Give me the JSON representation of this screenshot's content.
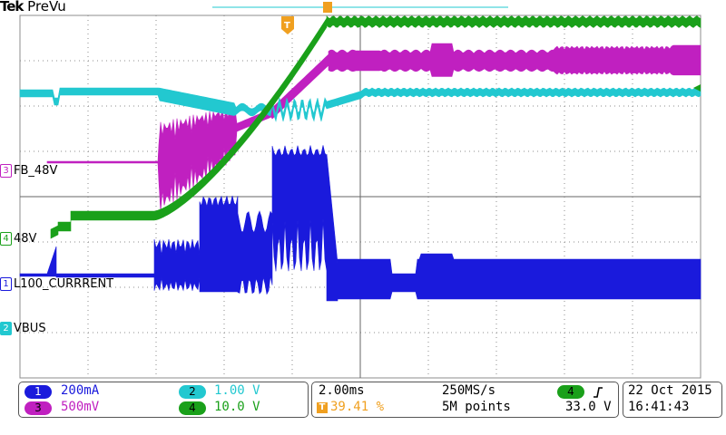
{
  "header": {
    "brand": "Tek",
    "mode": "PreVu"
  },
  "trigger": {
    "marker": "T"
  },
  "colors": {
    "ch1": "#1a1adc",
    "ch2": "#22c8d0",
    "ch3": "#c020c0",
    "ch4": "#1aa01a",
    "grid": "#8c8c8c",
    "trigger": "#f0a020"
  },
  "channel_labels": [
    {
      "num": "3",
      "name": "FB_48V"
    },
    {
      "num": "4",
      "name": "48V"
    },
    {
      "num": "1",
      "name": "L100_CURRRENT"
    },
    {
      "num": "2",
      "name": "VBUS"
    }
  ],
  "status": {
    "ch1": {
      "num": "1",
      "scale": "200mA"
    },
    "ch2": {
      "num": "2",
      "scale": "1.00 V"
    },
    "ch3": {
      "num": "3",
      "scale": "500mV"
    },
    "ch4": {
      "num": "4",
      "scale": "10.0 V"
    },
    "timebase": "2.00ms",
    "trigger_pos": "39.41 %",
    "sample_rate": "250MS/s",
    "record_length": "5M points",
    "trigger_source": "4",
    "trigger_level": "33.0 V",
    "date": "22 Oct  2015",
    "time": "16:41:43"
  }
}
